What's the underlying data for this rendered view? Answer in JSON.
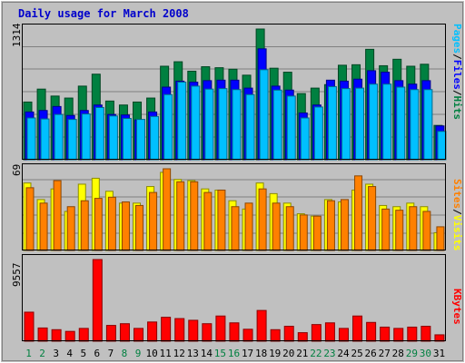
{
  "chart_data": [
    {
      "type": "bar",
      "title": "Daily usage for March 2008",
      "panel": "hits-files-pages",
      "y_max_label": "1314",
      "ylim": [
        0,
        1314
      ],
      "categories": [
        "1",
        "2",
        "3",
        "4",
        "5",
        "6",
        "7",
        "8",
        "9",
        "10",
        "11",
        "12",
        "13",
        "14",
        "15",
        "16",
        "17",
        "18",
        "19",
        "20",
        "21",
        "22",
        "23",
        "24",
        "25",
        "26",
        "27",
        "28",
        "29",
        "30",
        "31"
      ],
      "weekend_days": [
        "1",
        "2",
        "8",
        "9",
        "15",
        "16",
        "22",
        "23",
        "29",
        "30"
      ],
      "series": [
        {
          "name": "Hits",
          "color": "#008040",
          "values": [
            580,
            710,
            640,
            620,
            740,
            860,
            590,
            550,
            580,
            620,
            940,
            985,
            890,
            935,
            925,
            910,
            850,
            1314,
            920,
            880,
            665,
            720,
            755,
            950,
            955,
            1110,
            945,
            1010,
            940,
            960,
            345
          ]
        },
        {
          "name": "Files",
          "color": "#0000ff",
          "values": [
            480,
            495,
            535,
            445,
            495,
            550,
            455,
            450,
            400,
            480,
            730,
            790,
            780,
            795,
            800,
            800,
            720,
            1115,
            740,
            700,
            470,
            550,
            800,
            790,
            810,
            895,
            880,
            795,
            760,
            795,
            340
          ]
        },
        {
          "name": "Pages",
          "color": "#00c0ff",
          "values": [
            420,
            410,
            455,
            405,
            460,
            525,
            440,
            415,
            405,
            435,
            655,
            780,
            740,
            710,
            715,
            705,
            655,
            905,
            700,
            640,
            420,
            530,
            735,
            715,
            720,
            760,
            760,
            730,
            705,
            705,
            285
          ]
        }
      ],
      "legend": [
        {
          "label": "Pages",
          "color": "#00c0ff"
        },
        {
          "label": "Files",
          "color": "#0000ff"
        },
        {
          "label": "Hits",
          "color": "#008040"
        }
      ]
    },
    {
      "type": "bar",
      "panel": "visits-sites",
      "y_max_label": "69",
      "ylim": [
        0,
        69
      ],
      "series": [
        {
          "name": "Visits",
          "color": "#ffff00",
          "values": [
            57,
            43,
            52,
            33,
            56,
            61,
            50,
            40,
            40,
            54,
            66,
            60,
            59,
            52,
            51,
            42,
            35,
            57,
            48,
            40,
            31,
            29,
            43,
            41,
            51,
            56,
            38,
            37,
            40,
            37,
            15
          ]
        },
        {
          "name": "Sites",
          "color": "#ff8000",
          "values": [
            53,
            40,
            59,
            37,
            42,
            44,
            45,
            41,
            38,
            49,
            69,
            58,
            58,
            49,
            51,
            37,
            40,
            52,
            40,
            37,
            30,
            29,
            42,
            43,
            63,
            54,
            35,
            34,
            37,
            33,
            20
          ]
        }
      ],
      "legend": [
        {
          "label": "Sites",
          "color": "#ff8000"
        },
        {
          "label": "Visits",
          "color": "#ffff00"
        }
      ]
    },
    {
      "type": "bar",
      "panel": "kbytes",
      "y_max_label": "9557",
      "ylim": [
        0,
        9557
      ],
      "series": [
        {
          "name": "KBytes",
          "color": "#ff0000",
          "values": [
            3400,
            1550,
            1350,
            1150,
            1500,
            9557,
            1850,
            2050,
            1500,
            2250,
            2800,
            2650,
            2450,
            2050,
            2950,
            2150,
            1400,
            3600,
            1350,
            1750,
            1000,
            1950,
            2150,
            1500,
            2950,
            2200,
            1650,
            1500,
            1650,
            1750,
            750
          ]
        }
      ],
      "legend": [
        {
          "label": "KBytes",
          "color": "#ff0000"
        }
      ]
    }
  ]
}
